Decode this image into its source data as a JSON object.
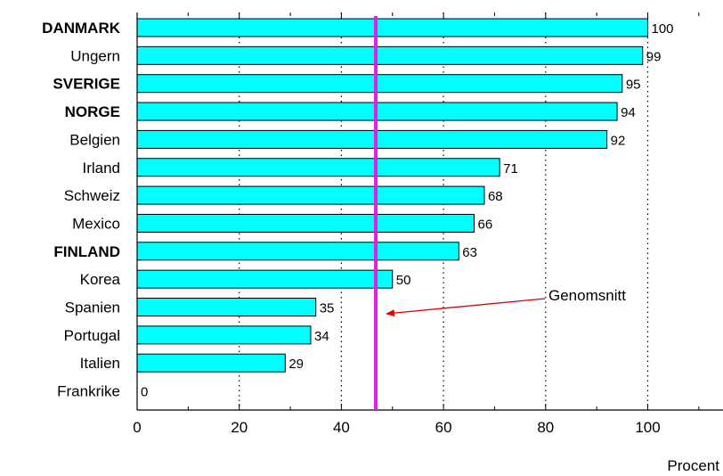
{
  "chart_data": {
    "type": "bar",
    "orientation": "horizontal",
    "categories": [
      "DANMARK",
      "Ungern",
      "SVERIGE",
      "NORGE",
      "Belgien",
      "Irland",
      "Schweiz",
      "Mexico",
      "FINLAND",
      "Korea",
      "Spanien",
      "Portugal",
      "Italien",
      "Frankrike"
    ],
    "bold_categories": [
      "DANMARK",
      "SVERIGE",
      "NORGE",
      "FINLAND"
    ],
    "values": [
      100,
      99,
      95,
      94,
      92,
      71,
      68,
      66,
      63,
      50,
      35,
      34,
      29,
      0
    ],
    "value_labels": [
      "100",
      "99",
      "95",
      "94",
      "92",
      "71",
      "68",
      "66",
      "63",
      "50",
      "35",
      "34",
      "29",
      "0"
    ],
    "x_ticks": [
      "0",
      "20",
      "40",
      "60",
      "80",
      "100"
    ],
    "xlim": [
      0,
      115
    ],
    "xlabel": "Procent",
    "grid": "vertical dotted",
    "bar_color": "#00FFFF",
    "average": {
      "value": 47,
      "label": "Genomsnitt",
      "line_color": "#E020E0",
      "arrow_color": "#E00000"
    }
  }
}
